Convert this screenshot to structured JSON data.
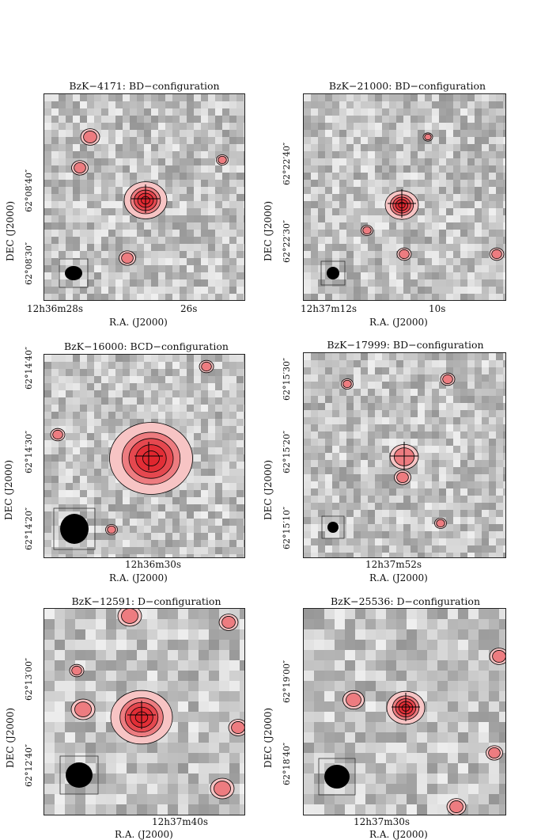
{
  "panels": [
    {
      "title": "BzK−4171: BD−configuration",
      "ylabel": "DEC (J2000)",
      "xlabel": "R.A. (J2000)",
      "yticks": [
        "62°08′40″",
        "62°08′30″"
      ],
      "xticks": [
        "12h36m28s",
        "26s"
      ],
      "map_name": "bzk-4171"
    },
    {
      "title": "BzK−21000: BD−configuration",
      "ylabel": "DEC (J2000)",
      "xlabel": "R.A. (J2000)",
      "yticks": [
        "62°22′40″",
        "62°22′30″"
      ],
      "xticks": [
        "12h37m12s",
        "10s"
      ],
      "map_name": "bzk-21000"
    },
    {
      "title": "BzK−16000: BCD−configuration",
      "ylabel": "DEC (J2000)",
      "xlabel": "R.A. (J2000)",
      "yticks": [
        "62°14′40″",
        "62°14′30″",
        "62°14′20″"
      ],
      "xticks": [
        "12h36m30s"
      ],
      "map_name": "bzk-16000"
    },
    {
      "title": "BzK−17999: BD−configuration",
      "ylabel": "DEC (J2000)",
      "xlabel": "R.A. (J2000)",
      "yticks": [
        "62°15′30″",
        "62°15′20″",
        "62°15′10″"
      ],
      "xticks": [
        "12h37m52s"
      ],
      "map_name": "bzk-17999"
    },
    {
      "title": "BzK−12591: D−configuration",
      "ylabel": "DEC (J2000)",
      "xlabel": "R.A. (J2000)",
      "yticks": [
        "62°13′00″",
        "62°12′40″"
      ],
      "xticks": [
        "12h37m40s"
      ],
      "map_name": "bzk-12591"
    },
    {
      "title": "BzK−25536: D−configuration",
      "ylabel": "DEC (J2000)",
      "xlabel": "R.A. (J2000)",
      "yticks": [
        "62°19′00″",
        "62°18′40″"
      ],
      "xticks": [
        "12h37m30s"
      ],
      "map_name": "bzk-25536"
    }
  ],
  "colors": {
    "emission": "#e0262e",
    "pale_emission": "#f7c4c4",
    "noise": "#9a9a9a",
    "frame": "#222222"
  }
}
